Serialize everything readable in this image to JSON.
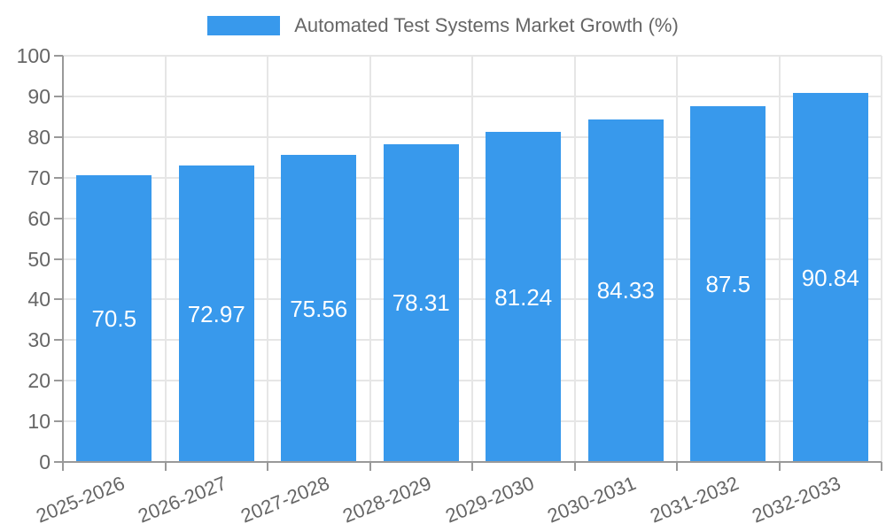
{
  "legend": {
    "label": "Automated Test Systems Market Growth (%)"
  },
  "colors": {
    "bar": "#3899ec",
    "grid": "#e6e6e6",
    "axis": "#999999",
    "tick_text": "#666666",
    "value_text": "#ffffff",
    "background": "#ffffff"
  },
  "chart_data": {
    "type": "bar",
    "title": "Automated Test Systems Market Growth (%)",
    "categories": [
      "2025-2026",
      "2026-2027",
      "2027-2028",
      "2028-2029",
      "2029-2030",
      "2030-2031",
      "2031-2032",
      "2032-2033"
    ],
    "values": [
      70.5,
      72.97,
      75.56,
      78.31,
      81.24,
      84.33,
      87.5,
      90.84
    ],
    "value_labels": [
      "70.5",
      "72.97",
      "75.56",
      "78.31",
      "81.24",
      "84.33",
      "87.5",
      "90.84"
    ],
    "xlabel": "",
    "ylabel": "",
    "ylim": [
      0,
      100
    ],
    "yticks": [
      0,
      10,
      20,
      30,
      40,
      50,
      60,
      70,
      80,
      90,
      100
    ],
    "grid": true,
    "legend_position": "top",
    "value_label_position": "center"
  }
}
